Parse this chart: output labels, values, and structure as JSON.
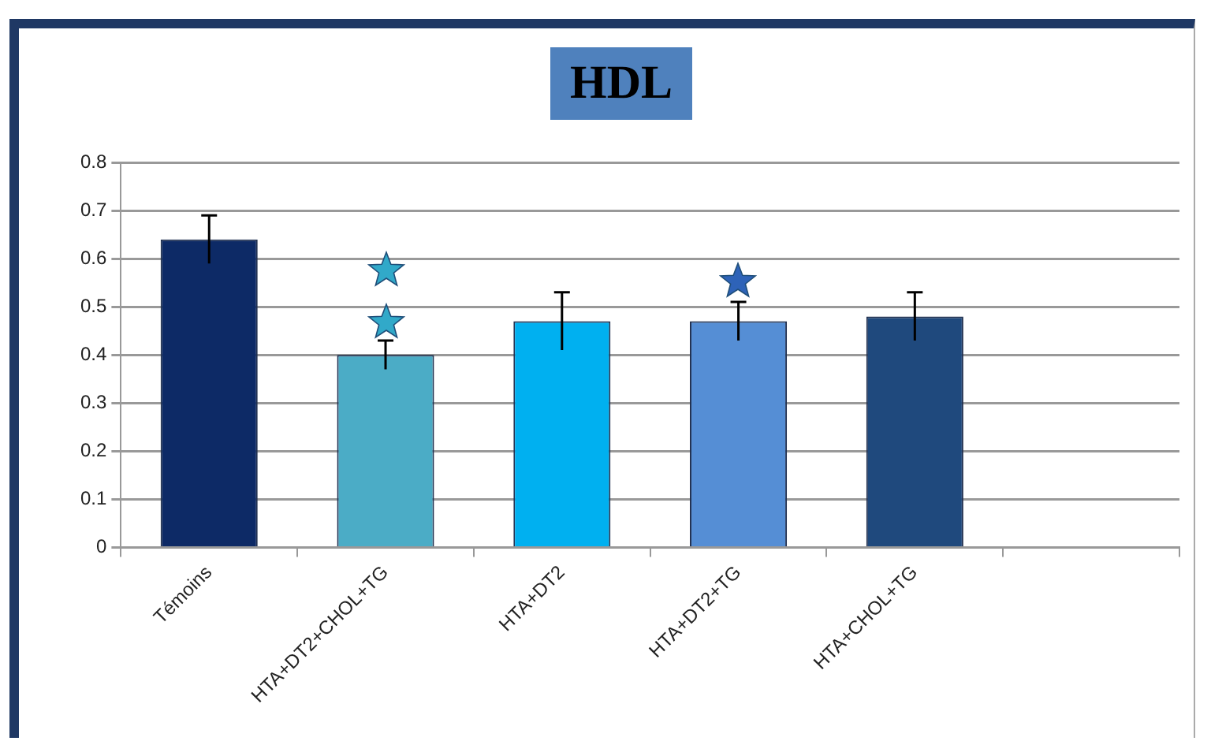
{
  "chart_data": {
    "type": "bar",
    "title": "HDL",
    "categories": [
      "Témoins",
      "HTA+DT2+CHOL+TG",
      "HTA+DT2",
      "HTA+DT2+TG",
      "HTA+CHOL+TG",
      null
    ],
    "values": [
      0.64,
      0.4,
      0.47,
      0.47,
      0.48,
      null
    ],
    "errors": [
      0.05,
      0.03,
      0.06,
      0.04,
      0.05,
      null
    ],
    "colors": [
      "#0d2a66",
      "#4bacc6",
      "#00b0f0",
      "#558ed5",
      "#1f497d",
      "#1f497d"
    ],
    "ylim": [
      0,
      0.8
    ],
    "yticks": [
      0,
      0.1,
      0.2,
      0.3,
      0.4,
      0.5,
      0.6,
      0.7,
      0.8
    ],
    "grid": "y",
    "legend": false
  }
}
